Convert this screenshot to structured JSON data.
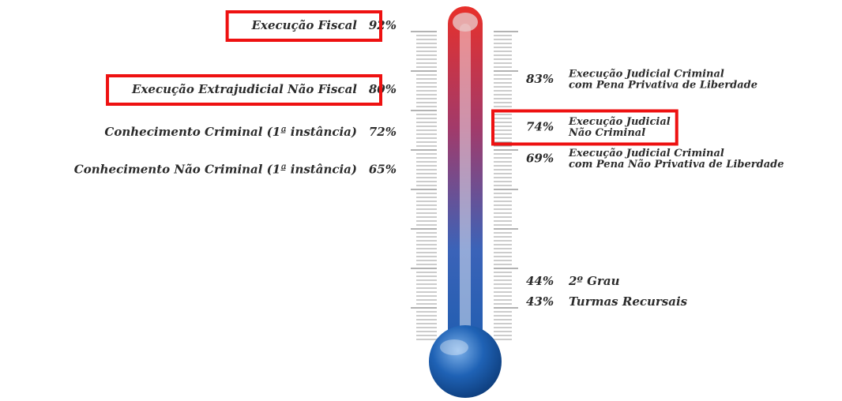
{
  "chart_data": {
    "type": "thermometer",
    "ylim": [
      36,
      96
    ],
    "left": {
      "categories": [
        [
          "Execução Fiscal"
        ],
        [
          "Execução Extrajudicial Não Fiscal"
        ],
        [
          "Conhecimento Criminal (1ª instância)"
        ],
        [
          "Conhecimento Não Criminal (1ª instância)"
        ]
      ],
      "values": [
        92,
        80,
        72,
        65
      ],
      "value_labels": [
        "92%",
        "80%",
        "72%",
        "65%"
      ],
      "highlighted": [
        true,
        true,
        false,
        false
      ]
    },
    "right": {
      "categories": [
        [
          "Execução Judicial Criminal",
          "com Pena Privativa de Liberdade"
        ],
        [
          "Execução Judicial",
          "Não Criminal"
        ],
        [
          "Execução Judicial Criminal",
          "com Pena Não Privativa de Liberdade"
        ],
        [
          "2º Grau"
        ],
        [
          "Turmas Recursais"
        ]
      ],
      "values": [
        83,
        74,
        69,
        44,
        43
      ],
      "value_labels": [
        "83%",
        "74%",
        "69%",
        "44%",
        "43%"
      ],
      "highlighted": [
        false,
        true,
        false,
        false,
        false
      ]
    },
    "highlight_color": "#ee1111"
  }
}
